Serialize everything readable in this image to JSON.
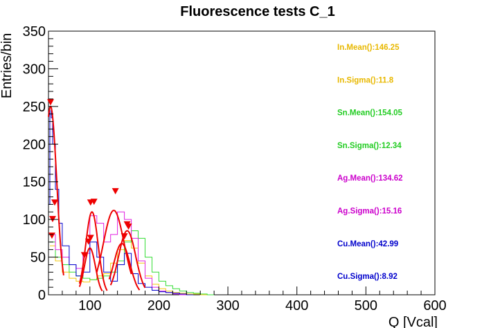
{
  "chart_data": {
    "type": "histogram",
    "title": "Fluorescence tests C_1",
    "xlabel": "Q [Vcal]",
    "ylabel": "Entries/bin",
    "xlim": [
      40,
      600
    ],
    "ylim": [
      0,
      350
    ],
    "x_ticks": [
      100,
      200,
      300,
      400,
      500,
      600
    ],
    "y_ticks": [
      0,
      50,
      100,
      150,
      200,
      250,
      300,
      350
    ],
    "grid": false,
    "colors": {
      "In": "#f2c80f",
      "Sn": "#33dd33",
      "Ag": "#e020e0",
      "Cu": "#0000cc",
      "fit": "#ee0000",
      "marker": "#ee0000"
    },
    "series": [
      {
        "name": "In",
        "x": [
          42,
          50,
          60,
          70,
          80,
          90,
          100,
          110,
          120,
          130,
          140,
          150,
          160,
          170,
          180,
          190,
          200,
          210,
          220,
          230,
          240,
          250,
          260
        ],
        "values": [
          65,
          45,
          30,
          22,
          18,
          17,
          20,
          25,
          28,
          42,
          60,
          72,
          62,
          42,
          25,
          14,
          8,
          5,
          3,
          2,
          1,
          1,
          0
        ]
      },
      {
        "name": "Sn",
        "x": [
          42,
          50,
          60,
          70,
          80,
          90,
          100,
          110,
          120,
          130,
          140,
          150,
          160,
          170,
          180,
          190,
          200,
          210,
          220,
          230,
          240,
          250,
          260,
          270
        ],
        "values": [
          70,
          50,
          40,
          30,
          25,
          22,
          20,
          22,
          25,
          30,
          45,
          70,
          85,
          75,
          50,
          30,
          18,
          12,
          8,
          5,
          3,
          2,
          1,
          0
        ]
      },
      {
        "name": "Ag",
        "x": [
          42,
          50,
          60,
          70,
          80,
          90,
          100,
          110,
          120,
          130,
          140,
          150,
          160,
          170,
          180,
          190,
          200,
          210,
          220,
          230
        ],
        "values": [
          80,
          60,
          50,
          40,
          35,
          55,
          105,
          95,
          70,
          80,
          110,
          100,
          75,
          45,
          22,
          10,
          5,
          3,
          1,
          0
        ]
      },
      {
        "name": "Cu",
        "x": [
          40,
          42,
          44,
          46,
          50,
          55,
          60,
          70,
          80,
          90,
          100,
          110,
          120,
          130,
          140,
          150,
          160,
          170,
          180,
          190,
          200,
          210,
          220,
          230,
          240
        ],
        "values": [
          120,
          250,
          235,
          200,
          140,
          95,
          65,
          40,
          25,
          30,
          70,
          50,
          30,
          18,
          40,
          55,
          28,
          15,
          10,
          6,
          4,
          3,
          2,
          1,
          0
        ]
      }
    ],
    "fit_curves": [
      {
        "name": "Cu-fit",
        "mean": 42.99,
        "sigma": 8.92,
        "amplitude": 250,
        "from": 40,
        "to": 62
      },
      {
        "name": "Ag-fit-1",
        "mean": 103,
        "sigma": 9,
        "amplitude": 110,
        "from": 85,
        "to": 125
      },
      {
        "name": "Ag-fit-2",
        "mean": 134.62,
        "sigma": 15.16,
        "amplitude": 112,
        "from": 110,
        "to": 160
      },
      {
        "name": "In-fit",
        "mean": 146.25,
        "sigma": 11.8,
        "amplitude": 68,
        "from": 128,
        "to": 172
      },
      {
        "name": "Sn-fit",
        "mean": 154.05,
        "sigma": 12.34,
        "amplitude": 85,
        "from": 130,
        "to": 180
      },
      {
        "name": "Cu-fit-2",
        "mean": 100,
        "sigma": 8,
        "amplitude": 62,
        "from": 85,
        "to": 118
      }
    ],
    "peak_markers": [
      {
        "x": 43,
        "y": 255
      },
      {
        "x": 49,
        "y": 122
      },
      {
        "x": 46,
        "y": 100
      },
      {
        "x": 45,
        "y": 78
      },
      {
        "x": 101,
        "y": 122
      },
      {
        "x": 106,
        "y": 123
      },
      {
        "x": 137,
        "y": 137
      },
      {
        "x": 101,
        "y": 75
      },
      {
        "x": 98,
        "y": 70
      },
      {
        "x": 92,
        "y": 52
      },
      {
        "x": 150,
        "y": 77
      },
      {
        "x": 154,
        "y": 93
      },
      {
        "x": 156,
        "y": 90
      }
    ],
    "stats": [
      {
        "text": "In.Mean():146.25",
        "color": "#e8b800"
      },
      {
        "text": "In.Sigma():11.8",
        "color": "#e8b800"
      },
      {
        "text": "Sn.Mean():154.05",
        "color": "#22cc22"
      },
      {
        "text": "Sn.Sigma():12.34",
        "color": "#22cc22"
      },
      {
        "text": "Ag.Mean():134.62",
        "color": "#cc00cc"
      },
      {
        "text": "Ag.Sigma():15.16",
        "color": "#cc00cc"
      },
      {
        "text": "Cu.Mean():42.99",
        "color": "#0000cc"
      },
      {
        "text": "Cu.Sigma():8.92",
        "color": "#0000cc"
      }
    ]
  }
}
